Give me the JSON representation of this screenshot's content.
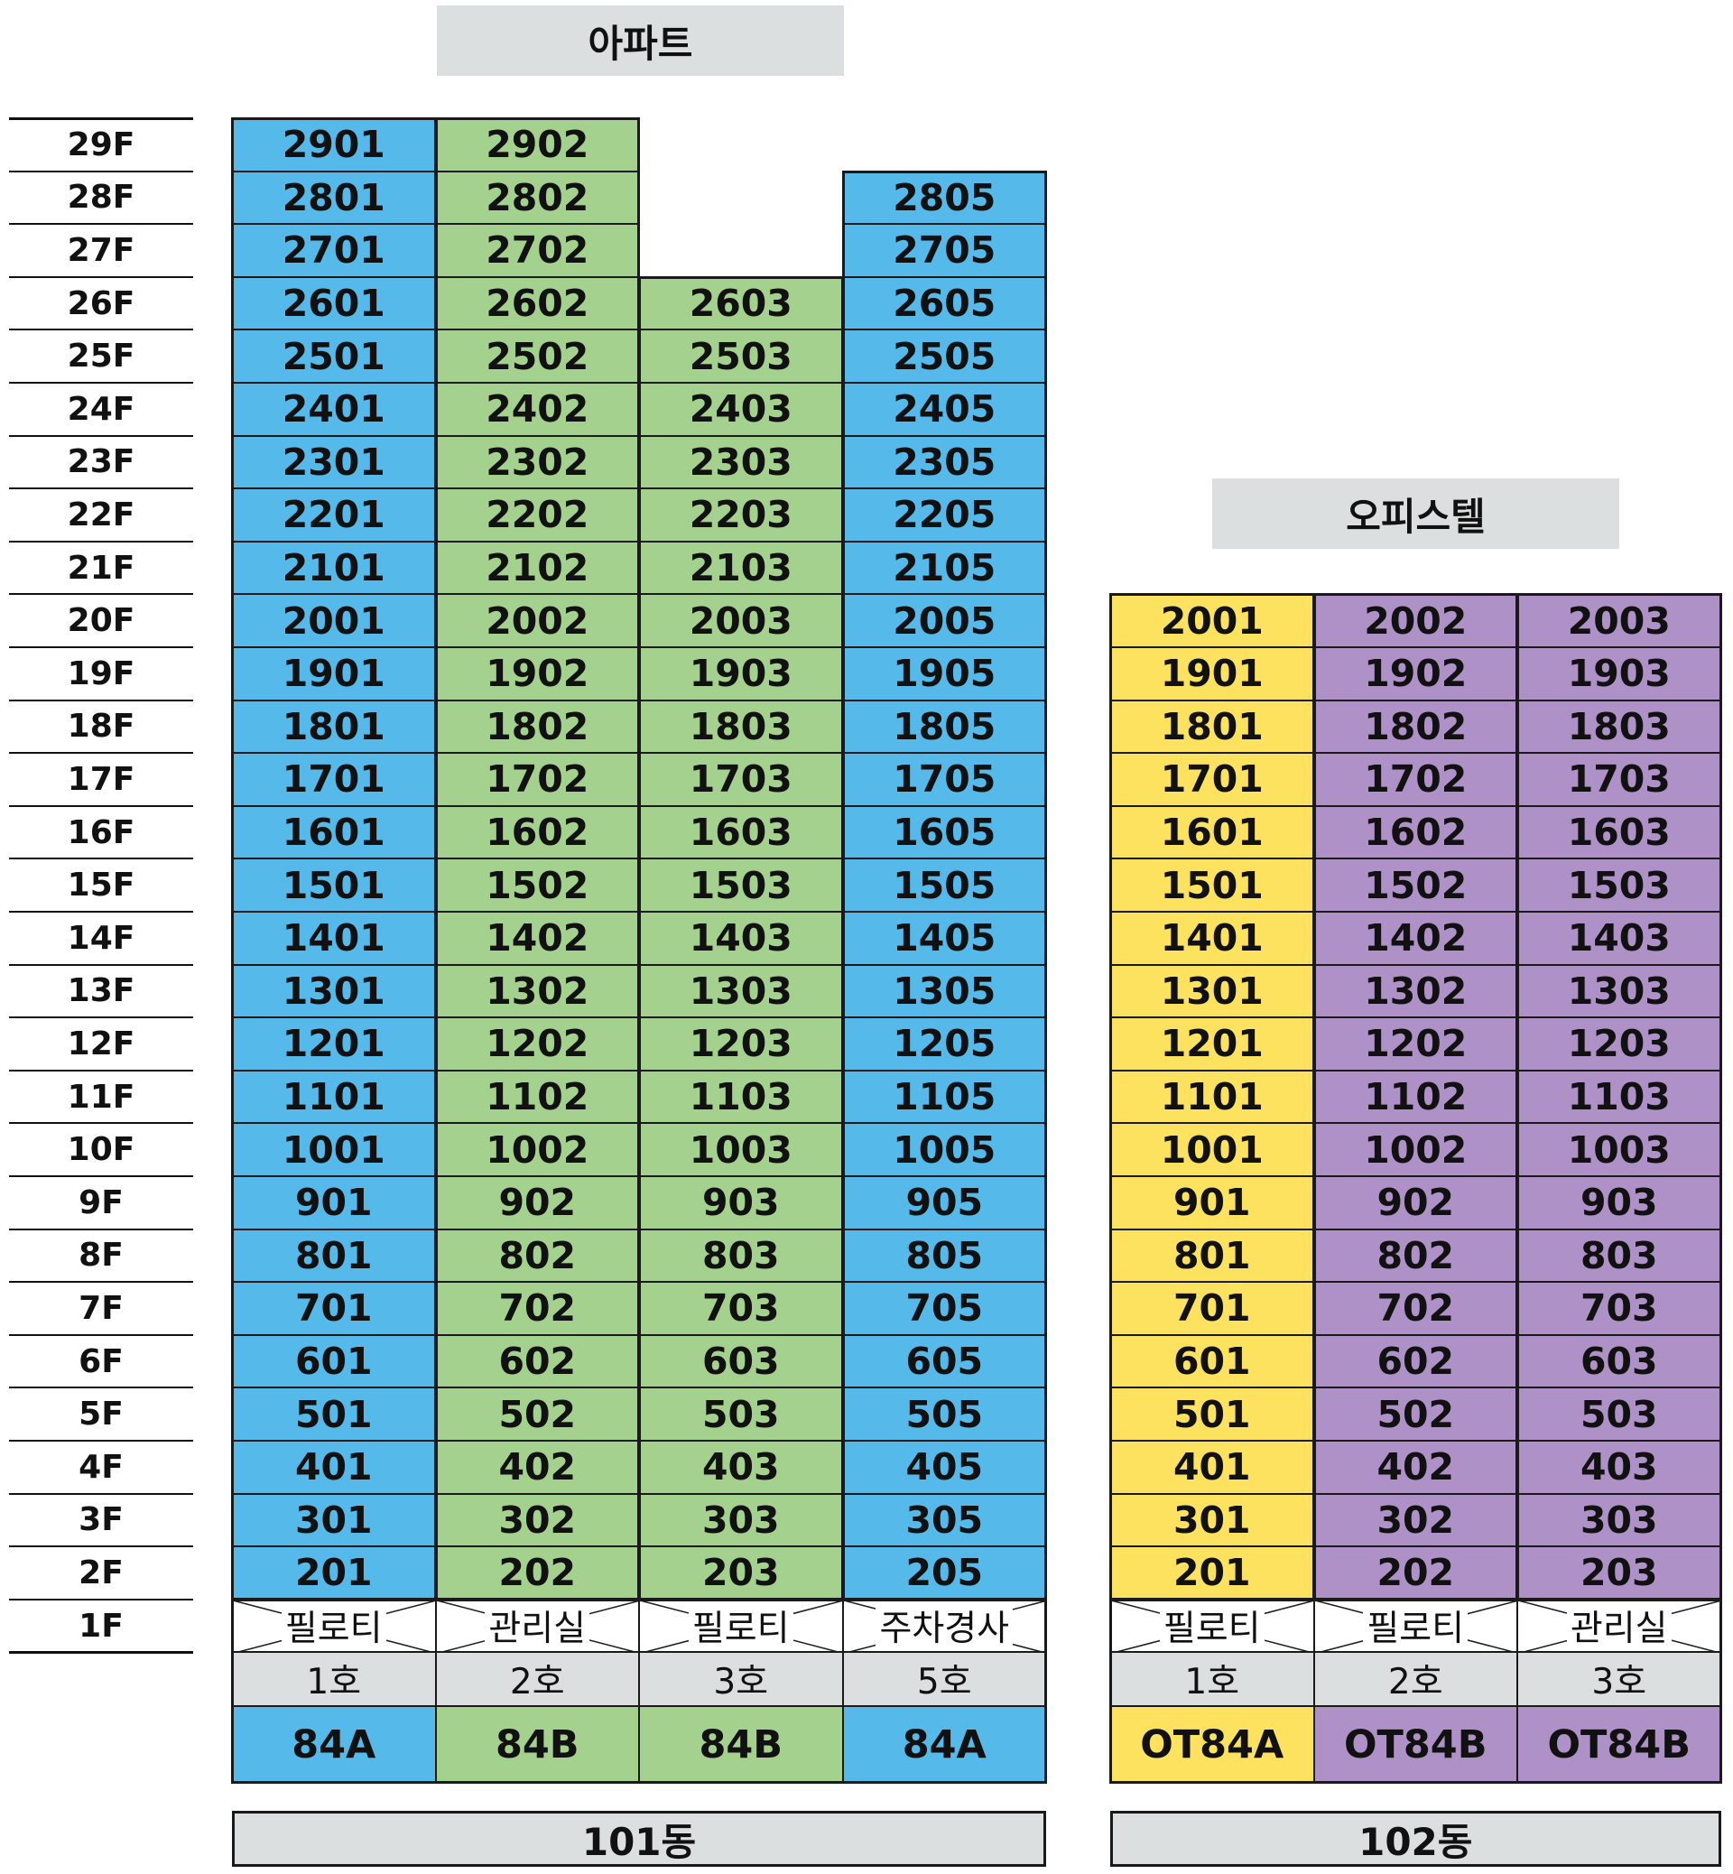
{
  "colors": {
    "blue": "#55b9ea",
    "green": "#a5d18e",
    "yellow": "#fde25f",
    "purple": "#ae91c6",
    "gray": "#dcdfe0"
  },
  "floors": [
    "29F",
    "28F",
    "27F",
    "26F",
    "25F",
    "24F",
    "23F",
    "22F",
    "21F",
    "20F",
    "19F",
    "18F",
    "17F",
    "16F",
    "15F",
    "14F",
    "13F",
    "12F",
    "11F",
    "10F",
    "9F",
    "8F",
    "7F",
    "6F",
    "5F",
    "4F",
    "3F",
    "2F",
    "1F"
  ],
  "buildings": [
    {
      "header": "아파트",
      "name": "101동",
      "columns": [
        {
          "color": "blue",
          "top_floor": 29,
          "suffix": "01",
          "ground": "필로티",
          "ho": "1호",
          "type": "84A"
        },
        {
          "color": "green",
          "top_floor": 29,
          "suffix": "02",
          "ground": "관리실",
          "ho": "2호",
          "type": "84B"
        },
        {
          "color": "green",
          "top_floor": 26,
          "suffix": "03",
          "ground": "필로티",
          "ho": "3호",
          "type": "84B"
        },
        {
          "color": "blue",
          "top_floor": 28,
          "suffix": "05",
          "ground": "주차경사",
          "ho": "5호",
          "type": "84A"
        }
      ]
    },
    {
      "header": "오피스텔",
      "name": "102동",
      "columns": [
        {
          "color": "yellow",
          "top_floor": 20,
          "suffix": "01",
          "ground": "필로티",
          "ho": "1호",
          "type": "OT84A"
        },
        {
          "color": "purple",
          "top_floor": 20,
          "suffix": "02",
          "ground": "필로티",
          "ho": "2호",
          "type": "OT84B"
        },
        {
          "color": "purple",
          "top_floor": 20,
          "suffix": "03",
          "ground": "관리실",
          "ho": "3호",
          "type": "OT84B"
        }
      ]
    }
  ]
}
